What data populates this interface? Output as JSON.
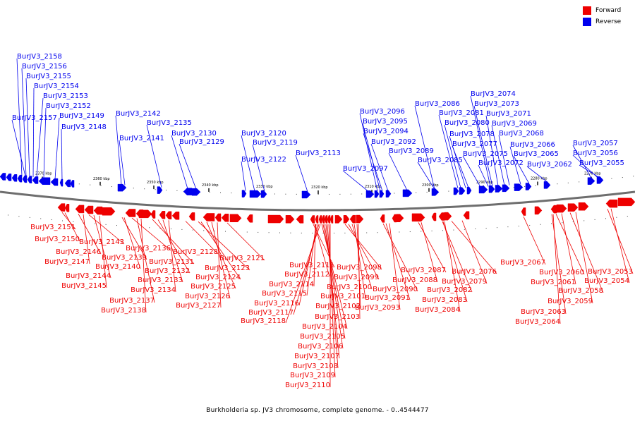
{
  "colors": {
    "forward": "#ee0000",
    "reverse": "#0000ee",
    "axis": "#6e6e6e"
  },
  "legend": [
    {
      "label": "Forward",
      "color": "#ee0000"
    },
    {
      "label": "Reverse",
      "color": "#0000ee"
    }
  ],
  "caption": "Burkholderia sp. JV3 chromosome, complete genome. - 0..4544477",
  "scale_ticks": [
    "2370 kbp",
    "2360 kbp",
    "2350 kbp",
    "2340 kbp",
    "2330 kbp",
    "2320 kbp",
    "2310 kbp",
    "2300 kbp",
    "2290 kbp",
    "2280 kbp",
    "2270 kbp"
  ],
  "reverse_genes": [
    "BurJV3_2158",
    "BurJV3_2156",
    "BurJV3_2155",
    "BurJV3_2154",
    "BurJV3_2153",
    "BurJV3_2152",
    "BurJV3_2157",
    "BurJV3_2149",
    "BurJV3_2148",
    "BurJV3_2142",
    "BurJV3_2141",
    "BurJV3_2135",
    "BurJV3_2130",
    "BurJV3_2129",
    "BurJV3_2122",
    "BurJV3_2120",
    "BurJV3_2119",
    "BurJV3_2113",
    "BurJV3_2097",
    "BurJV3_2096",
    "BurJV3_2095",
    "BurJV3_2094",
    "BurJV3_2092",
    "BurJV3_2089",
    "BurJV3_2086",
    "BurJV3_2085",
    "BurJV3_2081",
    "BurJV3_2080",
    "BurJV3_2078",
    "BurJV3_2077",
    "BurJV3_2075",
    "BurJV3_2074",
    "BurJV3_2073",
    "BurJV3_2071",
    "BurJV3_2069",
    "BurJV3_2068",
    "BurJV3_2066",
    "BurJV3_2065",
    "BurJV3_2072",
    "BurJV3_2062",
    "BurJV3_2057",
    "BurJV3_2056",
    "BurJV3_2055"
  ],
  "forward_genes": [
    "BurJV3_2151",
    "BurJV3_2150",
    "BurJV3_2146",
    "BurJV3_2147",
    "BurJV3_2143",
    "BurJV3_2144",
    "BurJV3_2145",
    "BurJV3_2139",
    "BurJV3_2140",
    "BurJV3_2136",
    "BurJV3_2137",
    "BurJV3_2138",
    "BurJV3_2131",
    "BurJV3_2132",
    "BurJV3_2133",
    "BurJV3_2134",
    "BurJV3_2128",
    "BurJV3_2123",
    "BurJV3_2124",
    "BurJV3_2125",
    "BurJV3_2126",
    "BurJV3_2127",
    "BurJV3_2121",
    "BurJV3_2111",
    "BurJV3_2112",
    "BurJV3_2114",
    "BurJV3_2115",
    "BurJV3_2116",
    "BurJV3_2117",
    "BurJV3_2118",
    "BurJV3_2104",
    "BurJV3_2105",
    "BurJV3_2106",
    "BurJV3_2107",
    "BurJV3_2108",
    "BurJV3_2109",
    "BurJV3_2110",
    "BurJV3_2098",
    "BurJV3_2099",
    "BurJV3_2100",
    "BurJV3_2101",
    "BurJV3_2102",
    "BurJV3_2103",
    "BurJV3_2090",
    "BurJV3_2091",
    "BurJV3_2093",
    "BurJV3_2087",
    "BurJV3_2088",
    "BurJV3_2082",
    "BurJV3_2083",
    "BurJV3_2084",
    "BurJV3_2076",
    "BurJV3_2079",
    "BurJV3_2067",
    "BurJV3_2060",
    "BurJV3_2061",
    "BurJV3_2058",
    "BurJV3_2059",
    "BurJV3_2063",
    "BurJV3_2064",
    "BurJV3_2053",
    "BurJV3_2054"
  ]
}
